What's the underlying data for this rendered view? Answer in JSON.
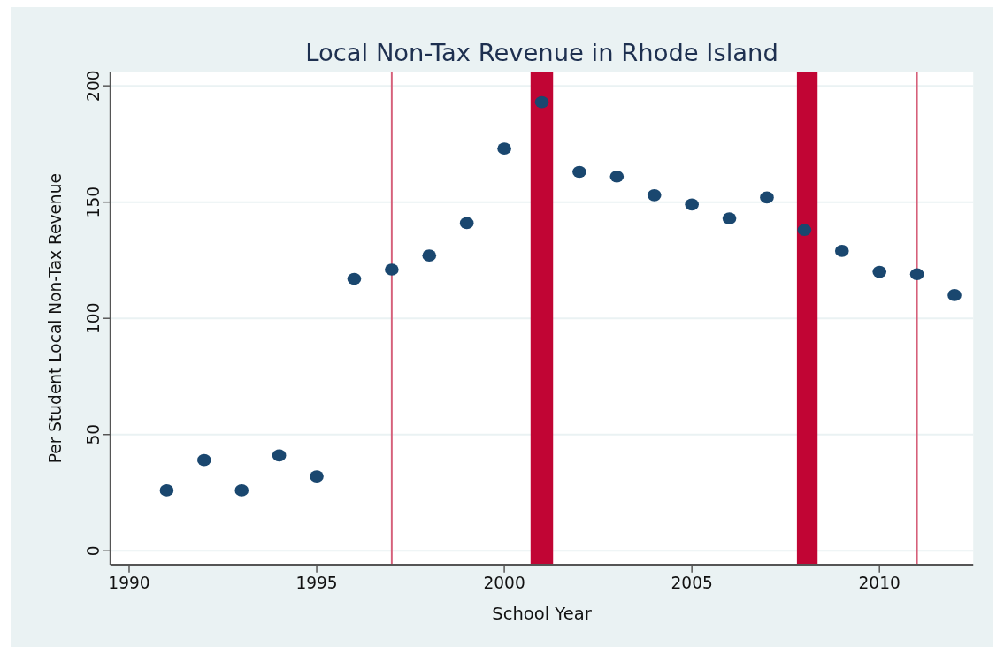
{
  "chart_data": {
    "type": "scatter",
    "title": "Local Non-Tax Revenue in Rhode Island",
    "xlabel": "School Year",
    "ylabel": "Per Student Local Non-Tax Revenue",
    "x": [
      1991,
      1992,
      1993,
      1994,
      1995,
      1996,
      1997,
      1998,
      1999,
      2000,
      2001,
      2002,
      2003,
      2004,
      2005,
      2006,
      2007,
      2008,
      2009,
      2010,
      2011,
      2012
    ],
    "series": [
      {
        "color": "#1a476f",
        "values": [
          26,
          39,
          26,
          41,
          32,
          117,
          121,
          127,
          141,
          173,
          193,
          163,
          161,
          153,
          149,
          143,
          152,
          138,
          129,
          120,
          119,
          110
        ]
      }
    ],
    "xlim": [
      1989.5,
      2012.5
    ],
    "xticks": [
      1990,
      1995,
      2000,
      2005,
      2010
    ],
    "ylim": [
      -6,
      206
    ],
    "yticks": [
      0,
      50,
      100,
      150,
      200
    ],
    "grid": "y",
    "marker": "circle",
    "ref_lines": [
      {
        "axis": "x",
        "value": 1997,
        "color": "#d6607a"
      },
      {
        "axis": "x",
        "value": 2011,
        "color": "#d6607a"
      }
    ],
    "bands": [
      {
        "axis": "x",
        "from": 2000.7,
        "to": 2001.3,
        "color": "#c10534"
      },
      {
        "axis": "x",
        "from": 2007.8,
        "to": 2008.35,
        "color": "#c10534"
      }
    ]
  }
}
